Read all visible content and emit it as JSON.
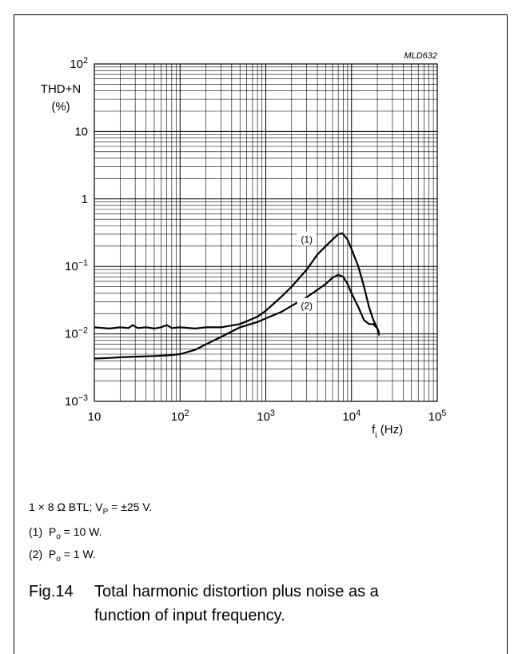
{
  "chart_data": {
    "type": "line",
    "id_label": "MLD632",
    "x_scale": "log",
    "y_scale": "log",
    "xlim": [
      10,
      100000
    ],
    "ylim": [
      0.001,
      100
    ],
    "ylabel_lines": [
      "THD+N",
      "(%)"
    ],
    "xlabel": {
      "main": "f",
      "sub": "i",
      "unit": " (Hz)"
    },
    "x_ticks": [
      {
        "v": 10,
        "label": "10"
      },
      {
        "v": 100,
        "base": "10",
        "exp": "2"
      },
      {
        "v": 1000,
        "base": "10",
        "exp": "3"
      },
      {
        "v": 10000,
        "base": "10",
        "exp": "4"
      },
      {
        "v": 100000,
        "base": "10",
        "exp": "5"
      }
    ],
    "y_ticks": [
      {
        "v": 100,
        "base": "10",
        "exp": "2"
      },
      {
        "v": 10,
        "label": "10"
      },
      {
        "v": 1,
        "label": "1"
      },
      {
        "v": 0.1,
        "base": "10",
        "exp": "−1"
      },
      {
        "v": 0.01,
        "base": "10",
        "exp": "−2"
      },
      {
        "v": 0.001,
        "base": "10",
        "exp": "−3"
      }
    ],
    "grid": true,
    "series": [
      {
        "name": "(1)",
        "label_at": [
          3000,
          0.25
        ],
        "points": [
          [
            10,
            0.0125
          ],
          [
            15,
            0.012
          ],
          [
            20,
            0.0125
          ],
          [
            25,
            0.0122
          ],
          [
            28,
            0.0135
          ],
          [
            32,
            0.0122
          ],
          [
            40,
            0.0125
          ],
          [
            50,
            0.012
          ],
          [
            60,
            0.0125
          ],
          [
            70,
            0.0135
          ],
          [
            80,
            0.0122
          ],
          [
            100,
            0.0125
          ],
          [
            150,
            0.012
          ],
          [
            200,
            0.0125
          ],
          [
            300,
            0.0125
          ],
          [
            500,
            0.014
          ],
          [
            800,
            0.018
          ],
          [
            1000,
            0.022
          ],
          [
            1500,
            0.035
          ],
          [
            2000,
            0.05
          ],
          [
            3000,
            0.09
          ],
          [
            4000,
            0.15
          ],
          [
            5000,
            0.2
          ],
          [
            6000,
            0.25
          ],
          [
            7000,
            0.3
          ],
          [
            7800,
            0.31
          ],
          [
            9000,
            0.25
          ],
          [
            10000,
            0.18
          ],
          [
            12000,
            0.1
          ],
          [
            14000,
            0.05
          ],
          [
            16000,
            0.025
          ],
          [
            18000,
            0.016
          ],
          [
            20000,
            0.012
          ],
          [
            21000,
            0.0095
          ]
        ]
      },
      {
        "name": "(2)",
        "label_at": [
          3000,
          0.026
        ],
        "points": [
          [
            10,
            0.0043
          ],
          [
            15,
            0.0044
          ],
          [
            20,
            0.0045
          ],
          [
            30,
            0.0046
          ],
          [
            50,
            0.0047
          ],
          [
            70,
            0.0048
          ],
          [
            100,
            0.005
          ],
          [
            150,
            0.0058
          ],
          [
            200,
            0.007
          ],
          [
            300,
            0.009
          ],
          [
            500,
            0.0125
          ],
          [
            800,
            0.015
          ],
          [
            1000,
            0.017
          ],
          [
            1500,
            0.021
          ],
          [
            2000,
            0.026
          ],
          [
            3000,
            0.035
          ],
          [
            4000,
            0.045
          ],
          [
            5000,
            0.055
          ],
          [
            6000,
            0.068
          ],
          [
            7000,
            0.075
          ],
          [
            8000,
            0.07
          ],
          [
            9000,
            0.055
          ],
          [
            10000,
            0.04
          ],
          [
            12000,
            0.025
          ],
          [
            14000,
            0.016
          ],
          [
            16000,
            0.014
          ],
          [
            18000,
            0.014
          ],
          [
            20000,
            0.012
          ],
          [
            21000,
            0.0105
          ]
        ]
      }
    ]
  },
  "notes": {
    "conditions": {
      "pre": "1 × 8 Ω BTL; V",
      "sub": "P",
      "post": " = ±25 V."
    },
    "n1": {
      "num": "(1)",
      "p": "P",
      "sub": "o",
      "post": " = 10 W."
    },
    "n2": {
      "num": "(2)",
      "p": "P",
      "sub": "o",
      "post": " = 1 W."
    }
  },
  "caption": {
    "number": "Fig.14",
    "line1": "Total harmonic distortion plus noise as a",
    "line2": "function of input frequency."
  }
}
